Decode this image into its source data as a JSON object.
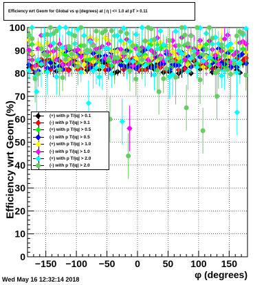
{
  "title": "Efficiency wrt Geom for Global vs φ (degrees) at | η | <= 1.0 at pT > 0.11",
  "timestamp": "Wed May 16 12:32:14 2018",
  "chart_data": {
    "type": "scatter",
    "xlabel": "φ (degrees)",
    "ylabel": "Efficiency wrt Geom (%)",
    "xlim": [
      -180,
      180
    ],
    "ylim": [
      0,
      100
    ],
    "xticks": [
      -150,
      -100,
      -50,
      0,
      50,
      100,
      150
    ],
    "yticks": [
      0,
      10,
      20,
      30,
      40,
      50,
      60,
      70,
      80,
      90,
      100
    ],
    "grid": true,
    "legend_position": "left-middle",
    "series": [
      {
        "name": "(+) with p T/|q| > 0.1",
        "color": "#000000",
        "marker": "diamond",
        "base": 83,
        "spread": 3,
        "err": 2,
        "seed": 1
      },
      {
        "name": "(-) with p T/|q| > 0.1",
        "color": "#ff0000",
        "marker": "diamond",
        "base": 84,
        "spread": 3,
        "err": 2,
        "seed": 2
      },
      {
        "name": "(+) with p T/|q| > 0.5",
        "color": "#00ff00",
        "marker": "diamond",
        "base": 88,
        "spread": 5,
        "err": 3,
        "seed": 3
      },
      {
        "name": "(-) with p T/|q| > 0.5",
        "color": "#0000ff",
        "marker": "diamond",
        "base": 86,
        "spread": 5,
        "err": 3,
        "seed": 4
      },
      {
        "name": "(+) with p T/|q| > 1.0",
        "color": "#ffff00",
        "marker": "diamond",
        "base": 89,
        "spread": 7,
        "err": 4,
        "seed": 5
      },
      {
        "name": "(-) with p T/|q| > 1.0",
        "color": "#ff00ff",
        "marker": "diamond",
        "base": 90,
        "spread": 7,
        "err": 4,
        "seed": 6
      },
      {
        "name": "(+) with p T/|q| > 2.0",
        "color": "#00ffff",
        "marker": "diamond",
        "base": 90,
        "spread": 12,
        "err": 7,
        "seed": 7
      },
      {
        "name": "(-) with p T/|q| > 2.0",
        "color": "#66cc66",
        "marker": "circle",
        "base": 90,
        "spread": 13,
        "err": 8,
        "seed": 8
      }
    ],
    "outliers": [
      {
        "series": 7,
        "x": -15,
        "y": 44
      },
      {
        "series": 7,
        "x": 107,
        "y": 55
      },
      {
        "series": 7,
        "x": 80,
        "y": 65
      },
      {
        "series": 6,
        "x": -25,
        "y": 59
      },
      {
        "series": 5,
        "x": -13,
        "y": 56
      },
      {
        "series": 6,
        "x": -80,
        "y": 67
      },
      {
        "series": 6,
        "x": 163,
        "y": 63
      },
      {
        "series": 7,
        "x": -45,
        "y": 60
      },
      {
        "series": 7,
        "x": 35,
        "y": 72
      },
      {
        "series": 6,
        "x": -165,
        "y": 72
      },
      {
        "series": 7,
        "x": 130,
        "y": 70
      }
    ]
  }
}
